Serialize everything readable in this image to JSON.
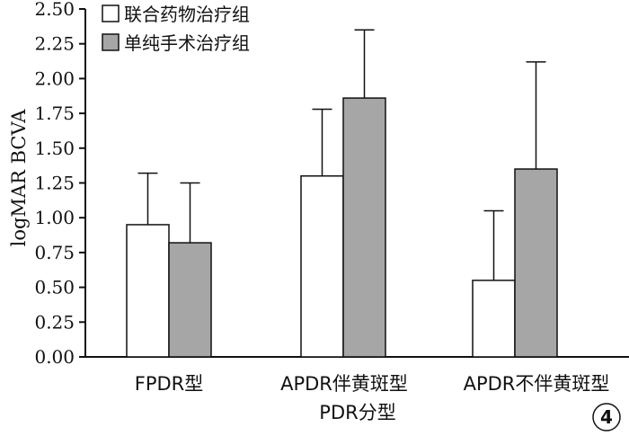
{
  "chart_data": {
    "type": "bar",
    "ylabel": "logMAR BCVA",
    "xlabel": "PDR分型",
    "ylim": [
      0,
      2.5
    ],
    "yticks": [
      "0.00",
      "0.25",
      "0.50",
      "0.75",
      "1.00",
      "1.25",
      "1.50",
      "1.75",
      "2.00",
      "2.25",
      "2.50"
    ],
    "categories": [
      "FPDR型",
      "APDR伴黄斑型",
      "APDR不伴黄斑型"
    ],
    "series": [
      {
        "name": "联合药物治疗组",
        "color": "#ffffff",
        "values": [
          0.95,
          1.3,
          0.55
        ],
        "error_upper": [
          1.32,
          1.78,
          1.05
        ]
      },
      {
        "name": "单纯手术治疗组",
        "color": "#a6a6a6",
        "values": [
          0.82,
          1.86,
          1.35
        ],
        "error_upper": [
          1.25,
          2.35,
          2.12
        ]
      }
    ],
    "legend_position": "top-left",
    "grid": false
  },
  "panel_label": "4"
}
